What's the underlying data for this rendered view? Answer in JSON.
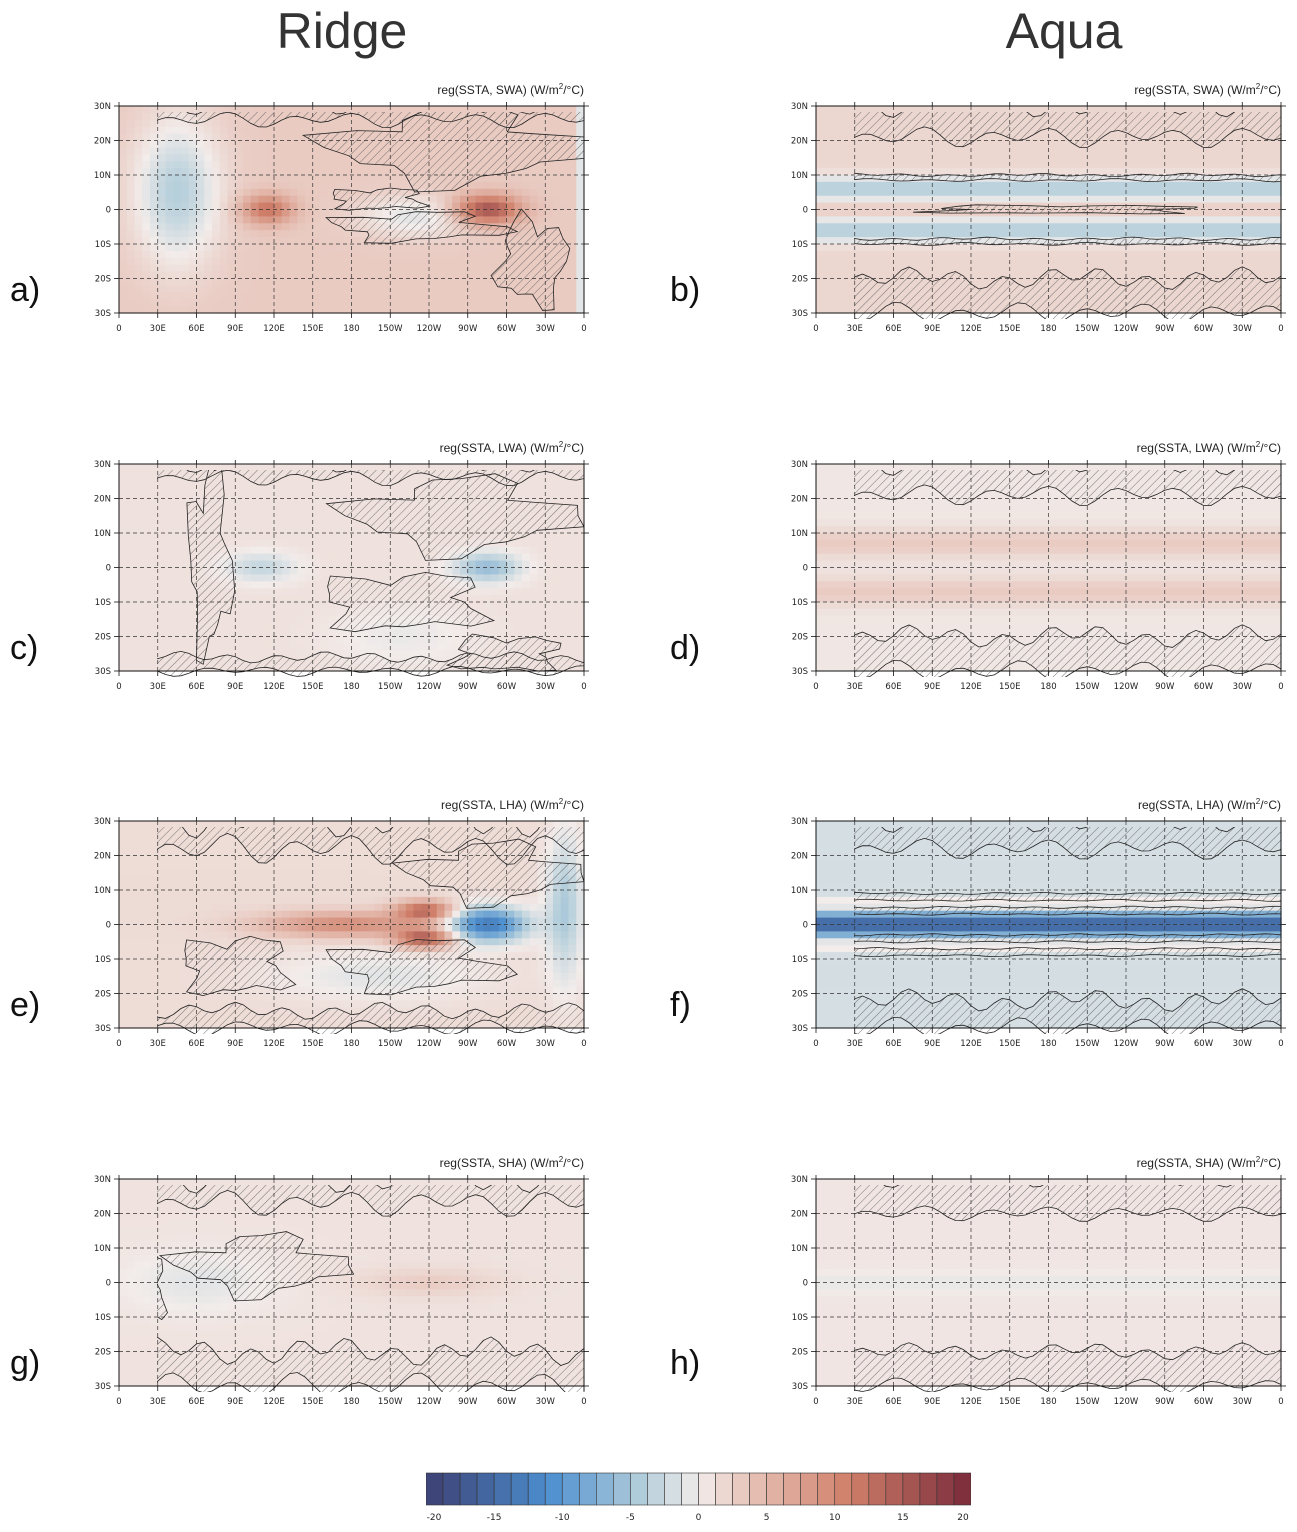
{
  "columns": [
    {
      "title": "Ridge"
    },
    {
      "title": "Aqua"
    }
  ],
  "panels": [
    {
      "id": "a",
      "letter": "a)",
      "title": "reg(SSTA, SWA)",
      "units": "(W/m",
      "units_sup": "2",
      "units_end": "/°C)",
      "col": 0,
      "row": 0,
      "pattern": "ridge_swa"
    },
    {
      "id": "b",
      "letter": "b)",
      "title": "reg(SSTA, SWA)",
      "units": "(W/m",
      "units_sup": "2",
      "units_end": "/°C)",
      "col": 1,
      "row": 0,
      "pattern": "aqua_swa"
    },
    {
      "id": "c",
      "letter": "c)",
      "title": "reg(SSTA, LWA)",
      "units": "(W/m",
      "units_sup": "2",
      "units_end": "/°C)",
      "col": 0,
      "row": 1,
      "pattern": "ridge_lwa"
    },
    {
      "id": "d",
      "letter": "d)",
      "title": "reg(SSTA, LWA)",
      "units": "(W/m",
      "units_sup": "2",
      "units_end": "/°C)",
      "col": 1,
      "row": 1,
      "pattern": "aqua_lwa"
    },
    {
      "id": "e",
      "letter": "e)",
      "title": "reg(SSTA, LHA)",
      "units": "(W/m",
      "units_sup": "2",
      "units_end": "/°C)",
      "col": 0,
      "row": 2,
      "pattern": "ridge_lha"
    },
    {
      "id": "f",
      "letter": "f)",
      "title": "reg(SSTA, LHA)",
      "units": "(W/m",
      "units_sup": "2",
      "units_end": "/°C)",
      "col": 1,
      "row": 2,
      "pattern": "aqua_lha"
    },
    {
      "id": "g",
      "letter": "g)",
      "title": "reg(SSTA, SHA)",
      "units": "(W/m",
      "units_sup": "2",
      "units_end": "/°C)",
      "col": 0,
      "row": 3,
      "pattern": "ridge_sha"
    },
    {
      "id": "h",
      "letter": "h)",
      "title": "reg(SSTA, SHA)",
      "units": "(W/m",
      "units_sup": "2",
      "units_end": "/°C)",
      "col": 1,
      "row": 3,
      "pattern": "aqua_sha"
    }
  ],
  "chart_data": {
    "type": "heatmap",
    "x_ticks": [
      "0",
      "30E",
      "60E",
      "90E",
      "120E",
      "150E",
      "180",
      "150W",
      "120W",
      "90W",
      "60W",
      "30W",
      "0"
    ],
    "y_ticks": [
      "30N",
      "20N",
      "10N",
      "0",
      "10S",
      "20S",
      "30S"
    ],
    "xlim": [
      0,
      360
    ],
    "ylim": [
      -30,
      30
    ],
    "colorbar": {
      "min": -20,
      "max": 20,
      "step": 1.25,
      "ticks": [
        "-20",
        "-15",
        "-10",
        "-5",
        "0",
        "5",
        "10",
        "15",
        "20"
      ]
    },
    "colors": {
      "neg_strong": "#3d3f73",
      "neg_mid": "#4c8fcf",
      "neg_light": "#b5cfdb",
      "neutral": "#f2ecea",
      "pos_light": "#e6c0b5",
      "pos_mid": "#d0806a",
      "pos_strong": "#7a2a3a"
    },
    "hatching": "stippled regions not significant"
  }
}
